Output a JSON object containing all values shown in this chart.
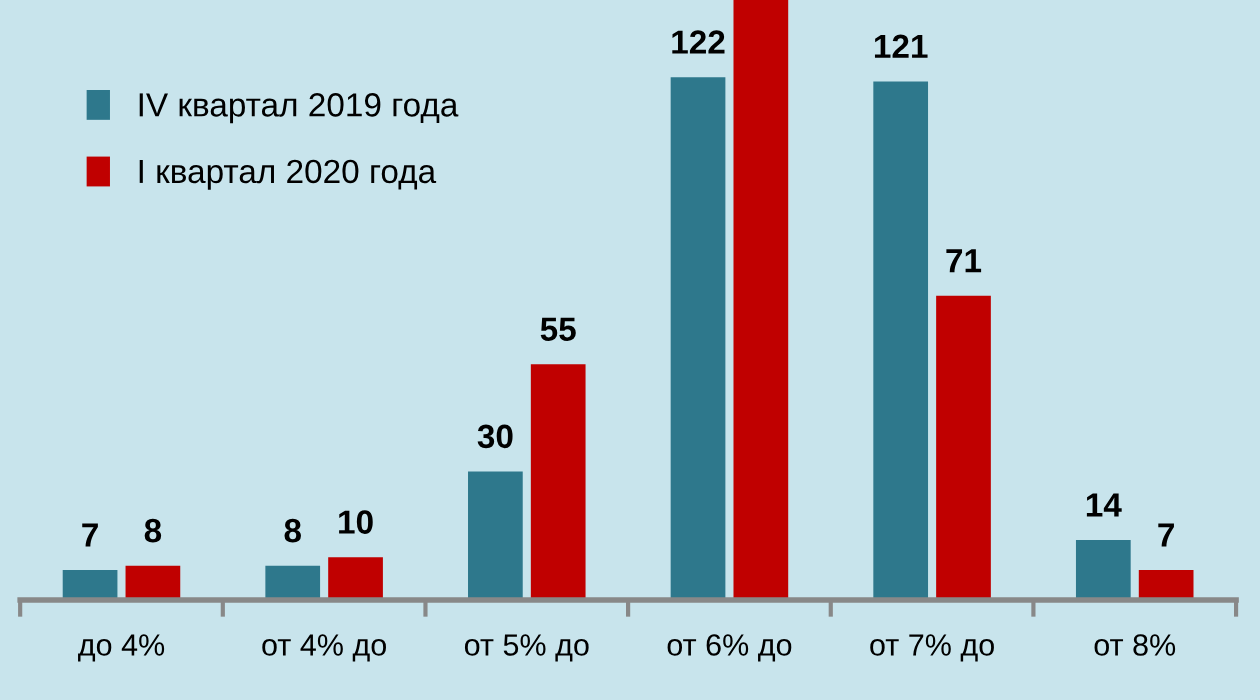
{
  "chart_data": {
    "type": "bar",
    "categories": [
      "до 4%",
      "от 4% до",
      "от 5% до",
      "от 6% до",
      "от 7% до",
      "от 8%"
    ],
    "series": [
      {
        "name": "IV квартал 2019 года",
        "color": "#2e788c",
        "values": [
          7,
          8,
          30,
          122,
          121,
          14
        ],
        "value_labels": [
          "7",
          "8",
          "30",
          "122",
          "121",
          "14"
        ]
      },
      {
        "name": "I квартал 2020 года",
        "color": "#c00000",
        "values": [
          8,
          10,
          55,
          140,
          71,
          7
        ],
        "value_labels": [
          "8",
          "10",
          "55",
          null,
          "71",
          "7"
        ]
      }
    ],
    "ylim": [
      0,
      140
    ],
    "tick_labels": "x",
    "grid": false,
    "legend": "top left"
  }
}
